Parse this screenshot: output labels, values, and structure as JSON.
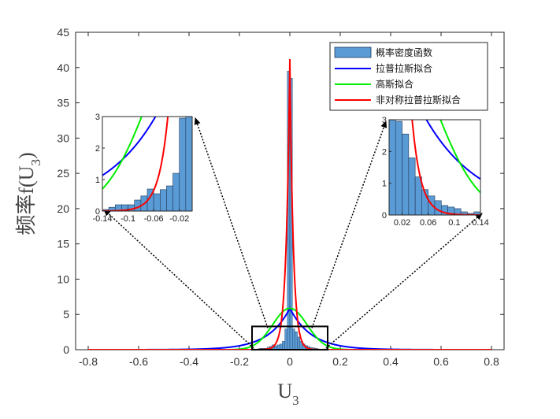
{
  "chart_data": {
    "type": "bar",
    "xlabel_main": "U",
    "xlabel_sub": "3",
    "ylabel_main": "频率f(U",
    "ylabel_sub": "3",
    "ylabel_close": ")",
    "xlim": [
      -0.85,
      0.85
    ],
    "ylim": [
      0,
      45
    ],
    "xticks": [
      -0.8,
      -0.6,
      -0.4,
      -0.2,
      0,
      0.2,
      0.4,
      0.6,
      0.8
    ],
    "xtick_labels": [
      "-0.8",
      "-0.6",
      "-0.4",
      "-0.2",
      "0",
      "0.2",
      "0.4",
      "0.6",
      "0.8"
    ],
    "yticks": [
      0,
      5,
      10,
      15,
      20,
      25,
      30,
      35,
      40,
      45
    ],
    "ytick_labels": [
      "0",
      "5",
      "10",
      "15",
      "20",
      "25",
      "30",
      "35",
      "40",
      "45"
    ],
    "legend": {
      "position": "top-right",
      "entries": [
        {
          "label": "概率密度函数",
          "kind": "patch",
          "color": "#5b9bd5"
        },
        {
          "label": "拉普拉斯拟合",
          "kind": "line",
          "color": "#0000ff"
        },
        {
          "label": "高斯拟合",
          "kind": "line",
          "color": "#00ee00"
        },
        {
          "label": "非对称拉普拉斯拟合",
          "kind": "line",
          "color": "#ff0000"
        }
      ]
    },
    "histogram": {
      "bin_width": 0.01,
      "centers": [
        -0.145,
        -0.135,
        -0.125,
        -0.115,
        -0.105,
        -0.095,
        -0.085,
        -0.075,
        -0.065,
        -0.055,
        -0.045,
        -0.035,
        -0.025,
        -0.015,
        -0.005,
        0.005,
        0.015,
        0.025,
        0.035,
        0.045,
        0.055,
        0.065,
        0.075,
        0.085,
        0.095,
        0.105,
        0.115,
        0.125,
        0.135,
        0.145
      ],
      "values": [
        0.12,
        0.05,
        0.12,
        0.2,
        0.2,
        0.2,
        0.35,
        0.48,
        0.7,
        0.55,
        0.68,
        0.8,
        1.2,
        2.95,
        39.5,
        38.5,
        2.95,
        2.55,
        1.8,
        1.2,
        0.8,
        0.6,
        0.45,
        0.3,
        0.25,
        0.2,
        0.1,
        0.05,
        0.1,
        0.12
      ]
    },
    "series": [
      {
        "name": "拉普拉斯拟合",
        "model": "laplace",
        "mu": 0.0,
        "b": 0.085,
        "color": "#0000ff"
      },
      {
        "name": "高斯拟合",
        "model": "gaussian",
        "mu": 0.0,
        "sigma": 0.068,
        "color": "#00ee00"
      },
      {
        "name": "非对称拉普拉斯拟合",
        "model": "asym_laplace",
        "mu": 0.0,
        "peak": 41.2,
        "b_left": 0.0145,
        "b_right": 0.0135,
        "color": "#ff0000"
      }
    ],
    "zoom_box": {
      "x": [
        -0.15,
        0.15
      ],
      "y": [
        0,
        3.3
      ]
    },
    "insets": [
      {
        "name": "left-inset",
        "xlim": [
          -0.14,
          0
        ],
        "ylim": [
          0,
          3
        ],
        "xtick_labels": [
          "-0.14",
          "-0.1",
          "-0.06",
          "-0.02"
        ],
        "xticks": [
          -0.14,
          -0.1,
          -0.06,
          -0.02
        ],
        "ytick_labels": [
          "0",
          "1",
          "2",
          "3"
        ],
        "yticks": [
          0,
          1,
          2,
          3
        ]
      },
      {
        "name": "right-inset",
        "xlim": [
          0,
          0.14
        ],
        "ylim": [
          0,
          3
        ],
        "xtick_labels": [
          "0.02",
          "0.06",
          "0.1",
          "0.14"
        ],
        "xticks": [
          0.02,
          0.06,
          0.1,
          0.14
        ],
        "ytick_labels": [
          "0",
          "1",
          "2",
          "3"
        ],
        "yticks": [
          0,
          1,
          2,
          3
        ]
      }
    ]
  }
}
